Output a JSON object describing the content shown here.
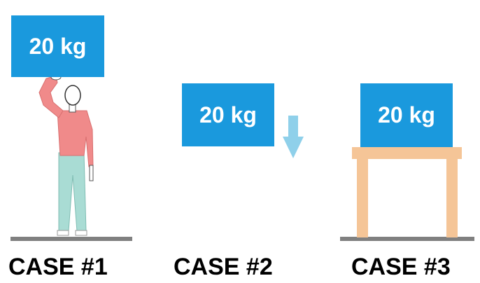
{
  "colors": {
    "box": "#1a99dd",
    "arrow": "#8fd0ea",
    "ground": "#808080",
    "table": "#f5c597",
    "shirt": "#f08a8a",
    "pants": "#a9dcd4",
    "skin": "#f08a8a",
    "outline": "#333333"
  },
  "cases": [
    {
      "label": "CASE #1",
      "box_label": "20 kg",
      "scene": "person holding box overhead"
    },
    {
      "label": "CASE #2",
      "box_label": "20 kg",
      "scene": "box falling"
    },
    {
      "label": "CASE #3",
      "box_label": "20 kg",
      "scene": "box resting on table"
    }
  ],
  "icons": [
    "person-icon",
    "down-arrow-icon",
    "table-icon"
  ]
}
